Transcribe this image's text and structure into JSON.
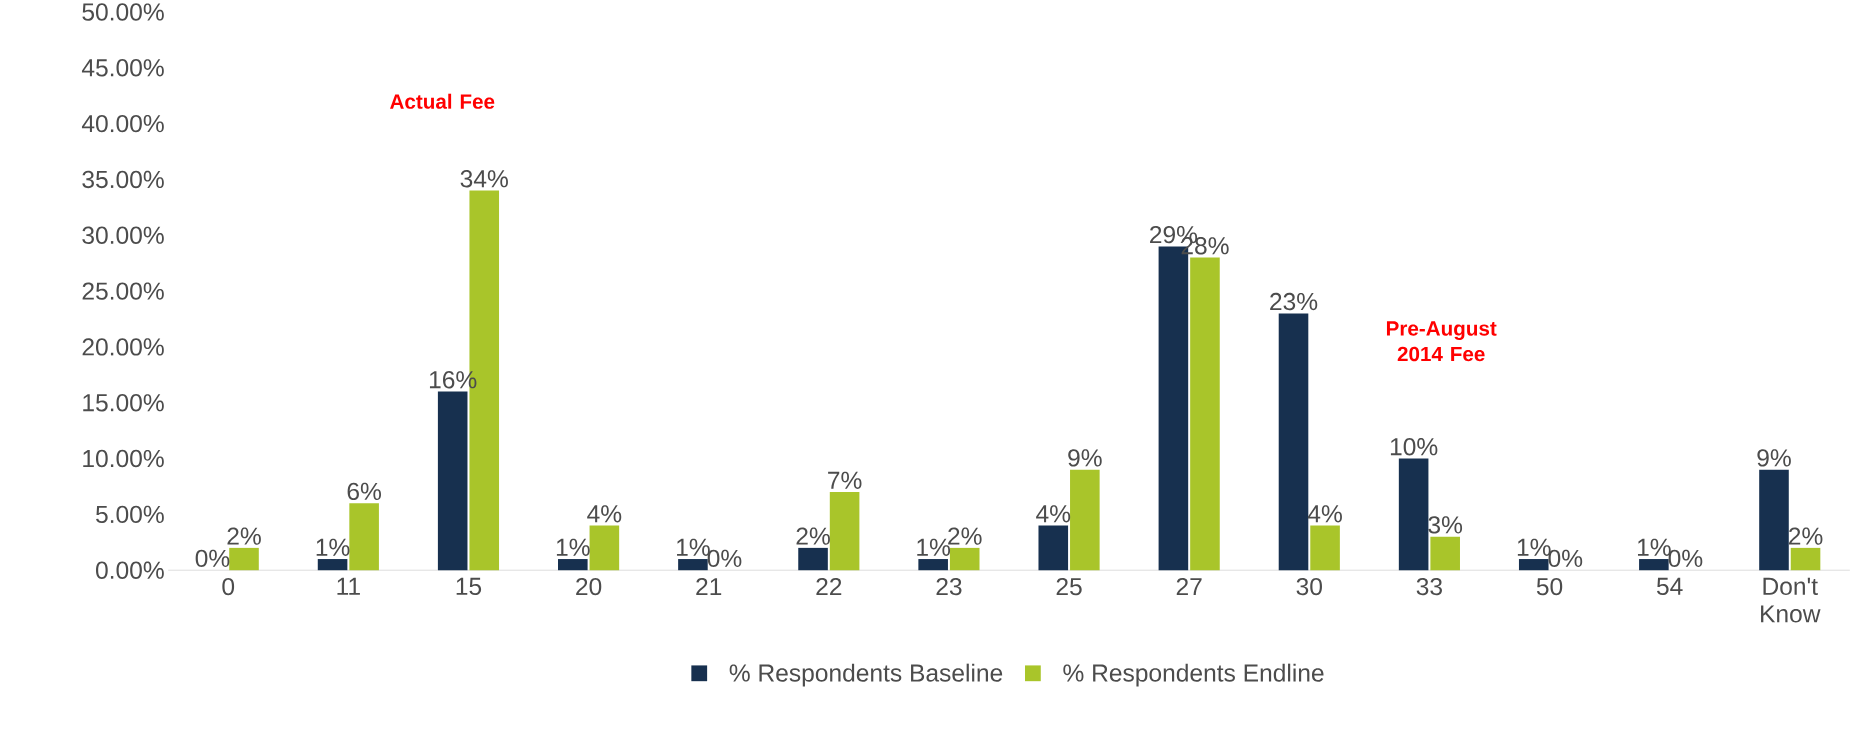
{
  "chart_data": {
    "type": "bar",
    "categories": [
      "0",
      "11",
      "15",
      "20",
      "21",
      "22",
      "23",
      "25",
      "27",
      "30",
      "33",
      "50",
      "54",
      "Don't Know"
    ],
    "series": [
      {
        "name": "% Respondents Baseline",
        "color": "#17304f",
        "values": [
          0,
          1,
          16,
          1,
          1,
          2,
          1,
          4,
          29,
          23,
          10,
          1,
          1,
          9
        ],
        "value_labels": [
          "0%",
          "1%",
          "16%",
          "1%",
          "1%",
          "2%",
          "1%",
          "4%",
          "29%",
          "23%",
          "10%",
          "1%",
          "1%",
          "9%"
        ]
      },
      {
        "name": "% Respondents Endline",
        "color": "#a9c52a",
        "values": [
          2,
          6,
          34,
          4,
          0,
          7,
          2,
          9,
          28,
          4,
          3,
          0,
          0,
          2
        ],
        "value_labels": [
          "2%",
          "6%",
          "34%",
          "4%",
          "0%",
          "7%",
          "2%",
          "9%",
          "28%",
          "4%",
          "3%",
          "0%",
          "0%",
          "2%"
        ]
      }
    ],
    "ylim": [
      0,
      50
    ],
    "yticks": [
      {
        "value": 0,
        "label": "0.00%"
      },
      {
        "value": 5,
        "label": "5.00%"
      },
      {
        "value": 10,
        "label": "10.00%"
      },
      {
        "value": 15,
        "label": "15.00%"
      },
      {
        "value": 20,
        "label": "20.00%"
      },
      {
        "value": 25,
        "label": "25.00%"
      },
      {
        "value": 30,
        "label": "30.00%"
      },
      {
        "value": 35,
        "label": "35.00%"
      },
      {
        "value": 40,
        "label": "40.00%"
      },
      {
        "value": 45,
        "label": "45.00%"
      },
      {
        "value": 50,
        "label": "50.00%"
      }
    ],
    "annotations": [
      "Actual Fee",
      "Pre-August 2014 Fee"
    ],
    "legend": "bottom"
  }
}
